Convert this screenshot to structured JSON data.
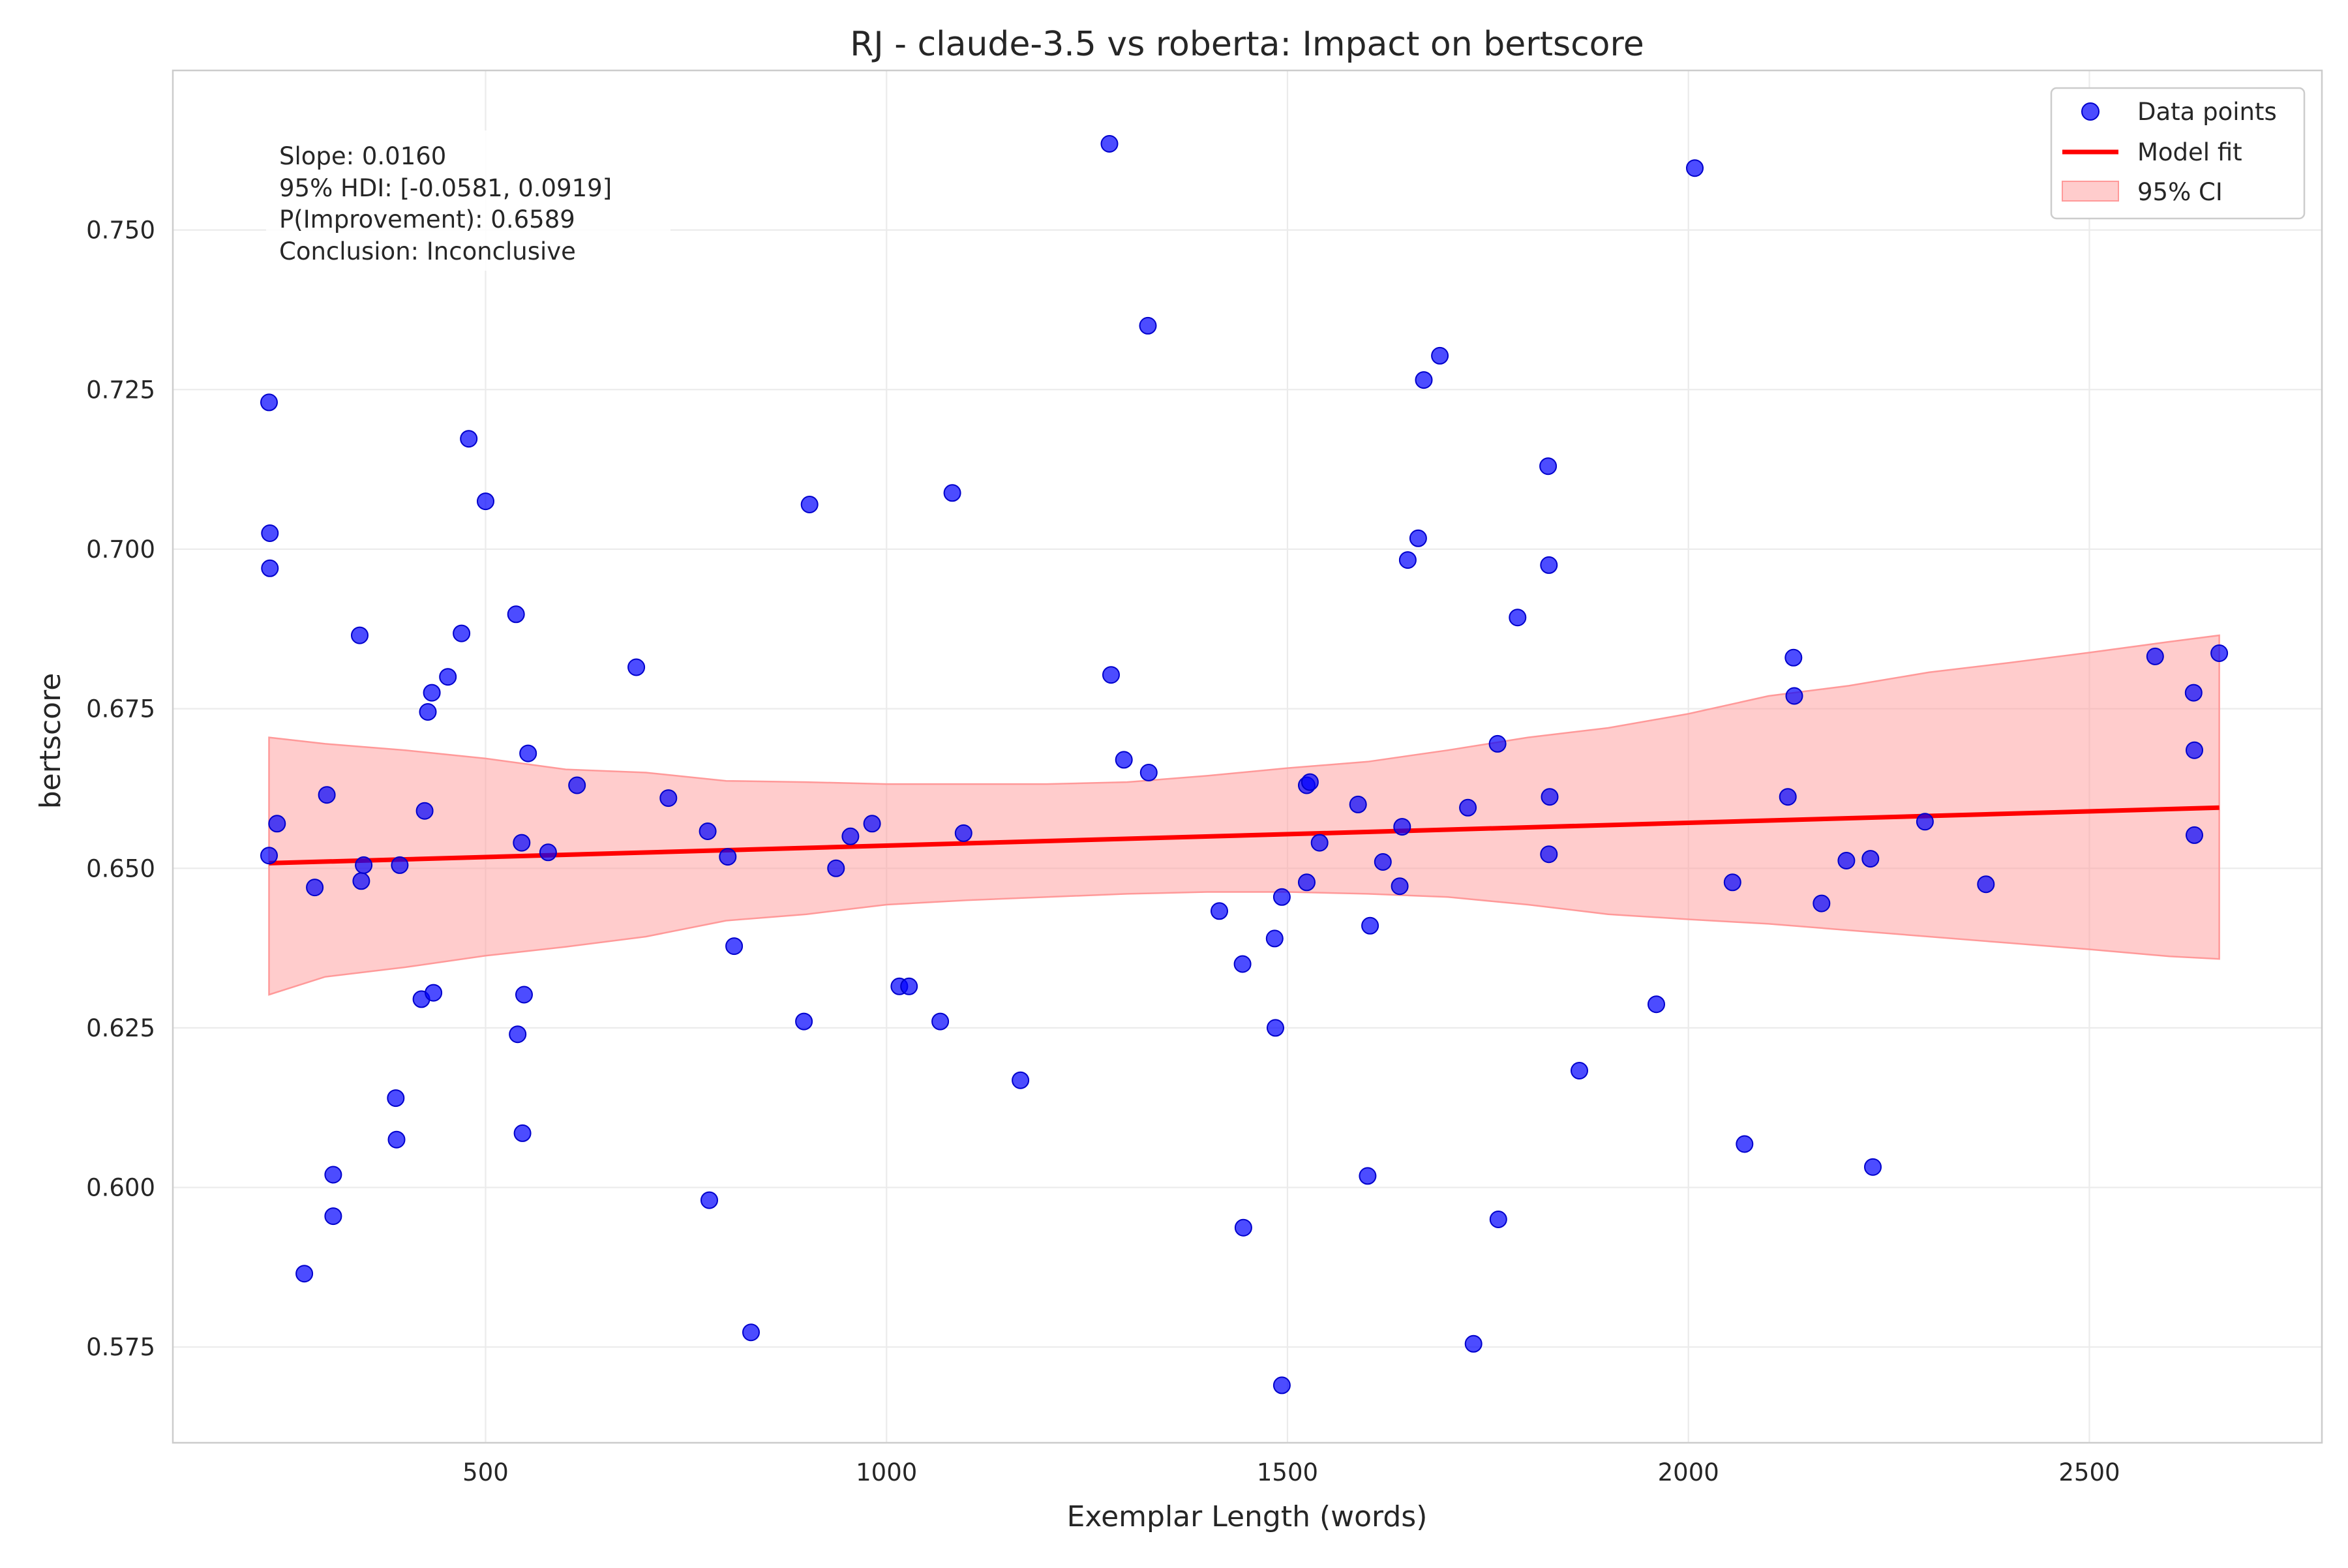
{
  "chart_data": {
    "type": "scatter",
    "title": "RJ - claude-3.5 vs roberta: Impact on bertscore",
    "xlabel": "Exemplar Length (words)",
    "ylabel": "bertscore",
    "xlim": [
      110,
      2790
    ],
    "ylim": [
      0.56,
      0.775
    ],
    "xticks": [
      500,
      1000,
      1500,
      2000,
      2500
    ],
    "yticks": [
      0.575,
      0.6,
      0.625,
      0.65,
      0.675,
      0.7,
      0.725,
      0.75
    ],
    "xtick_labels": [
      "500",
      "1000",
      "1500",
      "2000",
      "2500"
    ],
    "ytick_labels": [
      "0.575",
      "0.600",
      "0.625",
      "0.650",
      "0.675",
      "0.700",
      "0.725",
      "0.750"
    ],
    "grid": true,
    "legend_position": "top-right",
    "legend": {
      "points": "Data points",
      "fit": "Model fit",
      "ci": "95% CI"
    },
    "colors": {
      "points": "#0000ff",
      "fit": "#ff0000",
      "ci": "#ffcccc",
      "grid": "#ebebeb"
    },
    "annotation": {
      "slope": "Slope: 0.0160",
      "hdi": "95% HDI: [-0.0581, 0.0919]",
      "prob": "P(Improvement): 0.6589",
      "conclusion": "Conclusion: Inconclusive"
    },
    "series": [
      {
        "name": "Data points",
        "points": [
          [
            230,
            0.723
          ],
          [
            231,
            0.7025
          ],
          [
            231,
            0.697
          ],
          [
            230,
            0.652
          ],
          [
            240,
            0.657
          ],
          [
            274,
            0.5865
          ],
          [
            287,
            0.647
          ],
          [
            302,
            0.6615
          ],
          [
            310,
            0.602
          ],
          [
            310,
            0.5955
          ],
          [
            343,
            0.6865
          ],
          [
            345,
            0.648
          ],
          [
            348,
            0.6505
          ],
          [
            388,
            0.614
          ],
          [
            389,
            0.6075
          ],
          [
            393,
            0.6505
          ],
          [
            420,
            0.6295
          ],
          [
            424,
            0.659
          ],
          [
            428,
            0.6745
          ],
          [
            433,
            0.6775
          ],
          [
            435,
            0.6305
          ],
          [
            453,
            0.68
          ],
          [
            470,
            0.6868
          ],
          [
            479,
            0.7173
          ],
          [
            500,
            0.7075
          ],
          [
            538,
            0.6898
          ],
          [
            540,
            0.624
          ],
          [
            545,
            0.654
          ],
          [
            546,
            0.6085
          ],
          [
            548,
            0.6302
          ],
          [
            553,
            0.668
          ],
          [
            578,
            0.6525
          ],
          [
            614,
            0.663
          ],
          [
            688,
            0.6815
          ],
          [
            728,
            0.661
          ],
          [
            777,
            0.6558
          ],
          [
            779,
            0.598
          ],
          [
            802,
            0.6518
          ],
          [
            810,
            0.6378
          ],
          [
            831,
            0.5773
          ],
          [
            897,
            0.626
          ],
          [
            904,
            0.707
          ],
          [
            937,
            0.65
          ],
          [
            955,
            0.655
          ],
          [
            982,
            0.657
          ],
          [
            1016,
            0.6315
          ],
          [
            1028,
            0.6315
          ],
          [
            1067,
            0.626
          ],
          [
            1082,
            0.7088
          ],
          [
            1096,
            0.6555
          ],
          [
            1167,
            0.6168
          ],
          [
            1278,
            0.7635
          ],
          [
            1280,
            0.6803
          ],
          [
            1296,
            0.667
          ],
          [
            1326,
            0.735
          ],
          [
            1327,
            0.665
          ],
          [
            1415,
            0.6433
          ],
          [
            1444,
            0.635
          ],
          [
            1445,
            0.5937
          ],
          [
            1484,
            0.639
          ],
          [
            1485,
            0.625
          ],
          [
            1493,
            0.6455
          ],
          [
            1493,
            0.569
          ],
          [
            1524,
            0.6478
          ],
          [
            1524,
            0.663
          ],
          [
            1528,
            0.6635
          ],
          [
            1540,
            0.654
          ],
          [
            1588,
            0.66
          ],
          [
            1600,
            0.6018
          ],
          [
            1603,
            0.641
          ],
          [
            1619,
            0.651
          ],
          [
            1640,
            0.6472
          ],
          [
            1643,
            0.6565
          ],
          [
            1650,
            0.6983
          ],
          [
            1663,
            0.7017
          ],
          [
            1670,
            0.7265
          ],
          [
            1690,
            0.7303
          ],
          [
            1725,
            0.6595
          ],
          [
            1732,
            0.5755
          ],
          [
            1762,
            0.6695
          ],
          [
            1763,
            0.595
          ],
          [
            1787,
            0.6893
          ],
          [
            1825,
            0.713
          ],
          [
            1826,
            0.6975
          ],
          [
            1826,
            0.6522
          ],
          [
            1827,
            0.6612
          ],
          [
            1864,
            0.6183
          ],
          [
            1960,
            0.6287
          ],
          [
            2008,
            0.7597
          ],
          [
            2055,
            0.6478
          ],
          [
            2070,
            0.6068
          ],
          [
            2124,
            0.6612
          ],
          [
            2131,
            0.683
          ],
          [
            2132,
            0.677
          ],
          [
            2166,
            0.6445
          ],
          [
            2197,
            0.6512
          ],
          [
            2227,
            0.6515
          ],
          [
            2230,
            0.6032
          ],
          [
            2295,
            0.6573
          ],
          [
            2371,
            0.6475
          ],
          [
            2582,
            0.6832
          ],
          [
            2630,
            0.6775
          ],
          [
            2631,
            0.6685
          ],
          [
            2631,
            0.6552
          ],
          [
            2662,
            0.6837
          ]
        ]
      },
      {
        "name": "Model fit",
        "x": [
          230,
          2662
        ],
        "y": [
          0.6508,
          0.6595
        ]
      },
      {
        "name": "95% CI",
        "x": [
          230,
          300,
          400,
          500,
          600,
          700,
          800,
          900,
          1000,
          1100,
          1200,
          1300,
          1400,
          1500,
          1600,
          1700,
          1800,
          1900,
          2000,
          2100,
          2200,
          2300,
          2400,
          2500,
          2600,
          2662
        ],
        "upper": [
          0.6705,
          0.6695,
          0.6685,
          0.6672,
          0.6655,
          0.665,
          0.6637,
          0.6635,
          0.6632,
          0.6632,
          0.6632,
          0.6635,
          0.6645,
          0.6657,
          0.6667,
          0.6685,
          0.6705,
          0.672,
          0.6742,
          0.677,
          0.6786,
          0.6807,
          0.6822,
          0.6838,
          0.6855,
          0.6865
        ],
        "lower": [
          0.6302,
          0.633,
          0.6345,
          0.6363,
          0.6377,
          0.6393,
          0.6418,
          0.6428,
          0.6443,
          0.645,
          0.6455,
          0.646,
          0.6463,
          0.6463,
          0.646,
          0.6455,
          0.6443,
          0.6428,
          0.642,
          0.6413,
          0.6403,
          0.6393,
          0.6383,
          0.6373,
          0.6362,
          0.6358
        ]
      }
    ]
  }
}
